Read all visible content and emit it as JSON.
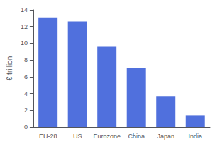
{
  "chart_data": {
    "type": "bar",
    "categories": [
      "EU-28",
      "US",
      "Eurozone",
      "China",
      "Japan",
      "India"
    ],
    "values": [
      13.1,
      12.6,
      9.65,
      7.05,
      3.7,
      1.4
    ],
    "ylabel": "€ trillion",
    "ylim": [
      0,
      14
    ],
    "yticks": [
      0,
      2,
      4,
      6,
      8,
      10,
      12,
      14
    ],
    "grid": false
  }
}
